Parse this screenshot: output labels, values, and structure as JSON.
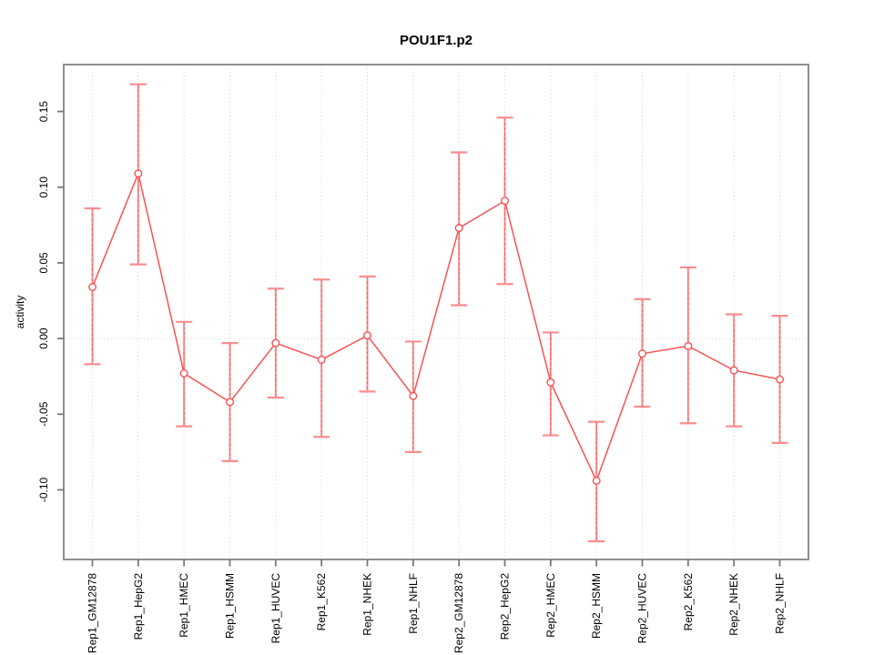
{
  "title": "POU1F1.p2",
  "chart_data": {
    "type": "line",
    "title": "POU1F1.p2",
    "xlabel": "",
    "ylabel": "activity",
    "legend_position": "none",
    "grid_vertical_dotted_per_category": true,
    "zero_reference_line": true,
    "categories": [
      "Rep1_GM12878",
      "Rep1_HepG2",
      "Rep1_HMEC",
      "Rep1_HSMM",
      "Rep1_HUVEC",
      "Rep1_K562",
      "Rep1_NHEK",
      "Rep1_NHLF",
      "Rep2_GM12878",
      "Rep2_HepG2",
      "Rep2_HMEC",
      "Rep2_HSMM",
      "Rep2_HUVEC",
      "Rep2_K562",
      "Rep2_NHEK",
      "Rep2_NHLF"
    ],
    "series": [
      {
        "name": "activity",
        "marker": "open-circle",
        "values": [
          0.034,
          0.109,
          -0.023,
          -0.042,
          -0.003,
          -0.014,
          0.002,
          -0.038,
          0.073,
          0.091,
          -0.029,
          -0.094,
          -0.01,
          -0.005,
          -0.021,
          -0.027
        ],
        "upper": [
          0.086,
          0.168,
          0.011,
          -0.003,
          0.033,
          0.039,
          0.041,
          -0.002,
          0.123,
          0.146,
          0.004,
          -0.055,
          0.026,
          0.047,
          0.016,
          0.015
        ],
        "lower": [
          -0.017,
          0.049,
          -0.058,
          -0.081,
          -0.039,
          -0.065,
          -0.035,
          -0.075,
          0.022,
          0.036,
          -0.064,
          -0.134,
          -0.045,
          -0.056,
          -0.058,
          -0.069
        ]
      }
    ],
    "ylim": [
      -0.146,
      0.181
    ],
    "yticks": [
      0.15,
      0.1,
      0.05,
      0.0,
      -0.05,
      -0.1
    ],
    "ytick_labels": [
      "0.15",
      "0.10",
      "0.05",
      "0.00",
      "-0.05",
      "-0.10"
    ],
    "colors": {
      "series_line": "#f85252",
      "error_bar": "#fa8e8e",
      "error_bar_dash": "#f75e5e",
      "marker_stroke": "#f85252",
      "marker_fill": "#ffffff",
      "frame": "#8f8f8f",
      "tick": "#787878",
      "grid": "#d6d6d6",
      "text": "#000000"
    }
  }
}
